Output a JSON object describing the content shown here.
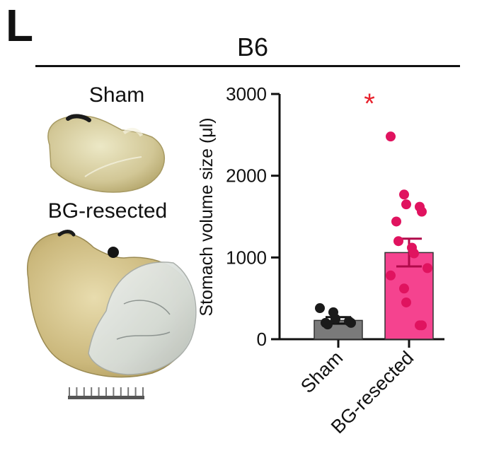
{
  "panel_letter": "L",
  "strain": "B6",
  "photos": {
    "sham_label": "Sham",
    "bg_label": "BG-resected"
  },
  "colors": {
    "sham_fill": "#7a7a7a",
    "sham_points": "#1a1a1a",
    "bg_fill": "#f5438f",
    "bg_points": "#e0135f",
    "significance": "#e8232e",
    "axis": "#111111"
  },
  "chart_data": {
    "type": "bar",
    "ylabel": "Stomach volume size (μl)",
    "ylim": [
      0,
      3000
    ],
    "yticks": [
      0,
      1000,
      2000,
      3000
    ],
    "categories": [
      "Sham",
      "BG-resected"
    ],
    "values": [
      230,
      1060
    ],
    "sem": [
      40,
      170
    ],
    "points": [
      [
        380,
        330,
        250,
        220,
        200,
        200,
        180
      ],
      [
        2480,
        1770,
        1650,
        1620,
        1560,
        1440,
        1200,
        1120,
        1050,
        870,
        780,
        620,
        450,
        170,
        170
      ]
    ],
    "annotation": "*"
  }
}
